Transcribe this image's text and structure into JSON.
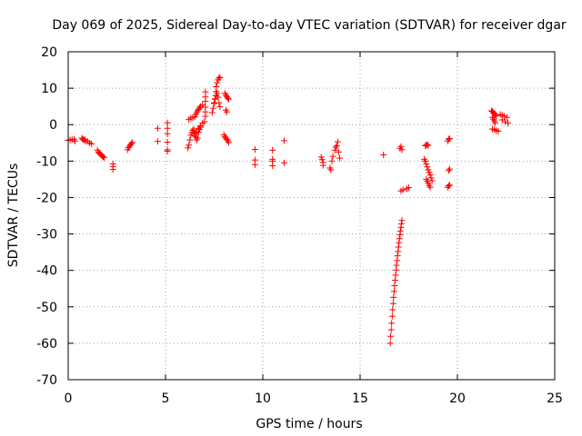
{
  "chart_data": {
    "type": "scatter",
    "title": "Day 069 of 2025, Sidereal Day-to-day VTEC variation (SDTVAR) for receiver dgar",
    "xlabel": "GPS time / hours",
    "ylabel": "SDTVAR / TECUs",
    "xlim": [
      0,
      25
    ],
    "ylim": [
      -70,
      20
    ],
    "xticks": [
      0,
      5,
      10,
      15,
      20,
      25
    ],
    "yticks": [
      -70,
      -60,
      -50,
      -40,
      -30,
      -20,
      -10,
      0,
      10,
      20
    ],
    "xtick_labels": [
      "0",
      "5",
      "10",
      "15",
      "20",
      "25"
    ],
    "ytick_labels": [
      "-70",
      "-60",
      "-50",
      "-40",
      "-30",
      "-20",
      "-10",
      "0",
      "10",
      "20"
    ],
    "grid": true,
    "marker": "plus",
    "color": "#ff0000",
    "segments": [
      [
        [
          0.0,
          -4.3
        ],
        [
          0.1,
          -4.2
        ],
        [
          0.2,
          -4.1
        ],
        [
          0.3,
          -4.0
        ],
        [
          0.35,
          -4.5
        ]
      ],
      [
        [
          0.7,
          -3.7
        ],
        [
          0.75,
          -4.0
        ],
        [
          0.8,
          -4.2
        ],
        [
          0.85,
          -4.1
        ],
        [
          0.9,
          -4.5
        ],
        [
          1.0,
          -4.6
        ],
        [
          1.1,
          -5.0
        ],
        [
          1.2,
          -5.3
        ]
      ],
      [
        [
          1.5,
          -7.0
        ],
        [
          1.55,
          -7.5
        ],
        [
          1.6,
          -7.8
        ],
        [
          1.65,
          -8.1
        ],
        [
          1.7,
          -8.4
        ],
        [
          1.75,
          -8.6
        ],
        [
          1.8,
          -8.9
        ],
        [
          1.85,
          -9.0
        ]
      ],
      [
        [
          2.3,
          -10.8
        ],
        [
          2.3,
          -11.5
        ],
        [
          2.3,
          -12.3
        ]
      ],
      [
        [
          3.05,
          -6.9
        ],
        [
          3.1,
          -6.3
        ],
        [
          3.15,
          -5.9
        ],
        [
          3.2,
          -5.5
        ],
        [
          3.25,
          -5.2
        ],
        [
          3.3,
          -4.9
        ]
      ],
      [
        [
          4.6,
          -1.0
        ],
        [
          4.6,
          -4.6
        ]
      ],
      [
        [
          5.1,
          0.5
        ],
        [
          5.1,
          -1.0
        ],
        [
          5.1,
          -2.5
        ],
        [
          5.1,
          -4.8
        ],
        [
          5.1,
          -6.9
        ],
        [
          5.1,
          -7.3
        ]
      ],
      [
        [
          6.15,
          -6.4
        ],
        [
          6.2,
          -5.6
        ],
        [
          6.25,
          -4.2
        ],
        [
          6.3,
          -2.9
        ],
        [
          6.35,
          -2.2
        ],
        [
          6.4,
          -1.6
        ],
        [
          6.45,
          -1.2
        ],
        [
          6.5,
          -2.3
        ],
        [
          6.55,
          -3.4
        ],
        [
          6.6,
          -4.2
        ],
        [
          6.65,
          -3.7
        ],
        [
          6.7,
          -2.1
        ],
        [
          6.75,
          -1.3
        ],
        [
          6.8,
          -0.7
        ]
      ],
      [
        [
          6.2,
          1.4
        ],
        [
          6.3,
          1.8
        ],
        [
          6.4,
          1.9
        ],
        [
          6.5,
          2.2
        ],
        [
          6.55,
          2.8
        ],
        [
          6.6,
          3.3
        ],
        [
          6.65,
          3.8
        ],
        [
          6.7,
          4.2
        ],
        [
          6.75,
          4.6
        ],
        [
          6.8,
          5.0
        ],
        [
          6.9,
          5.4
        ]
      ],
      [
        [
          6.5,
          -3.1
        ],
        [
          6.55,
          -2.6
        ],
        [
          6.6,
          -1.9
        ],
        [
          6.7,
          -1.0
        ],
        [
          6.8,
          -0.3
        ],
        [
          6.9,
          0.4
        ],
        [
          7.0,
          0.8
        ]
      ],
      [
        [
          7.05,
          9.0
        ],
        [
          7.05,
          7.6
        ],
        [
          7.05,
          6.4
        ],
        [
          7.05,
          4.8
        ],
        [
          7.05,
          3.5
        ],
        [
          7.05,
          2.3
        ]
      ],
      [
        [
          7.4,
          3.3
        ],
        [
          7.45,
          4.5
        ],
        [
          7.5,
          5.8
        ],
        [
          7.55,
          7.0
        ],
        [
          7.6,
          8.0
        ],
        [
          7.6,
          9.1
        ],
        [
          7.6,
          10.4
        ],
        [
          7.65,
          11.5
        ],
        [
          7.7,
          12.3
        ],
        [
          7.75,
          12.8
        ],
        [
          7.8,
          13.0
        ]
      ],
      [
        [
          7.5,
          6.0
        ],
        [
          7.55,
          7.1
        ],
        [
          7.6,
          7.9
        ],
        [
          7.65,
          8.6
        ],
        [
          7.7,
          7.5
        ],
        [
          7.75,
          6.0
        ],
        [
          7.8,
          4.9
        ]
      ],
      [
        [
          8.05,
          8.6
        ],
        [
          8.1,
          8.1
        ],
        [
          8.15,
          7.7
        ],
        [
          8.2,
          7.3
        ],
        [
          8.25,
          7.0
        ],
        [
          8.1,
          4.0
        ],
        [
          8.15,
          3.5
        ]
      ],
      [
        [
          8.0,
          -2.8
        ],
        [
          8.05,
          -3.3
        ],
        [
          8.1,
          -3.7
        ],
        [
          8.15,
          -4.0
        ],
        [
          8.2,
          -4.4
        ],
        [
          8.25,
          -4.9
        ]
      ],
      [
        [
          9.6,
          -6.8
        ],
        [
          9.6,
          -9.7
        ],
        [
          9.6,
          -11.0
        ]
      ],
      [
        [
          10.5,
          -7.0
        ],
        [
          10.5,
          -9.5
        ],
        [
          10.5,
          -10.0
        ],
        [
          10.5,
          -11.3
        ]
      ],
      [
        [
          11.1,
          -4.4
        ],
        [
          11.1,
          -10.5
        ]
      ],
      [
        [
          13.0,
          -8.9
        ],
        [
          13.05,
          -9.6
        ],
        [
          13.1,
          -10.4
        ],
        [
          13.1,
          -11.2
        ]
      ],
      [
        [
          13.45,
          -11.9
        ],
        [
          13.5,
          -12.4
        ],
        [
          13.55,
          -10.0
        ],
        [
          13.6,
          -8.7
        ],
        [
          13.7,
          -7.0
        ],
        [
          13.75,
          -6.2
        ],
        [
          13.8,
          -5.8
        ],
        [
          13.85,
          -4.7
        ],
        [
          13.9,
          -7.5
        ],
        [
          13.95,
          -9.2
        ]
      ],
      [
        [
          16.2,
          -8.3
        ]
      ],
      [
        [
          16.55,
          -60.0
        ],
        [
          16.57,
          -58.1
        ],
        [
          16.6,
          -56.3
        ],
        [
          16.62,
          -54.5
        ],
        [
          16.65,
          -52.6
        ],
        [
          16.67,
          -50.8
        ],
        [
          16.7,
          -49.1
        ],
        [
          16.72,
          -47.4
        ],
        [
          16.75,
          -45.8
        ],
        [
          16.77,
          -44.2
        ],
        [
          16.8,
          -42.7
        ],
        [
          16.82,
          -41.3
        ],
        [
          16.85,
          -39.9
        ],
        [
          16.87,
          -38.6
        ],
        [
          16.9,
          -37.3
        ],
        [
          16.92,
          -36.0
        ],
        [
          16.95,
          -34.8
        ],
        [
          16.97,
          -33.6
        ],
        [
          17.0,
          -32.4
        ],
        [
          17.02,
          -31.3
        ],
        [
          17.05,
          -30.2
        ],
        [
          17.07,
          -29.2
        ],
        [
          17.1,
          -28.2
        ],
        [
          17.12,
          -27.2
        ],
        [
          17.15,
          -26.3
        ]
      ],
      [
        [
          17.05,
          -6.5
        ],
        [
          17.1,
          -6.0
        ],
        [
          17.15,
          -6.9
        ]
      ],
      [
        [
          17.1,
          -18.2
        ],
        [
          17.2,
          -17.9
        ],
        [
          17.4,
          -17.6
        ],
        [
          17.5,
          -17.3
        ]
      ],
      [
        [
          18.3,
          -9.5
        ],
        [
          18.35,
          -10.0
        ],
        [
          18.4,
          -10.8
        ],
        [
          18.45,
          -11.6
        ],
        [
          18.5,
          -12.4
        ],
        [
          18.55,
          -13.1
        ],
        [
          18.6,
          -13.8
        ],
        [
          18.65,
          -14.6
        ],
        [
          18.7,
          -15.4
        ]
      ],
      [
        [
          18.35,
          -5.8
        ],
        [
          18.4,
          -5.6
        ],
        [
          18.45,
          -5.5
        ],
        [
          18.5,
          -5.7
        ]
      ],
      [
        [
          18.4,
          -15.0
        ],
        [
          18.45,
          -15.5
        ],
        [
          18.5,
          -16.1
        ],
        [
          18.55,
          -16.7
        ],
        [
          18.6,
          -17.2
        ]
      ],
      [
        [
          19.5,
          -4.5
        ],
        [
          19.55,
          -4.0
        ],
        [
          19.6,
          -3.8
        ]
      ],
      [
        [
          19.55,
          -12.6
        ],
        [
          19.6,
          -12.2
        ]
      ],
      [
        [
          19.5,
          -17.2
        ],
        [
          19.55,
          -16.8
        ],
        [
          19.6,
          -16.6
        ]
      ],
      [
        [
          21.75,
          3.8
        ],
        [
          21.8,
          3.6
        ],
        [
          21.85,
          3.3
        ],
        [
          21.9,
          3.0
        ],
        [
          21.95,
          2.7
        ],
        [
          22.0,
          2.4
        ],
        [
          21.8,
          2.0
        ],
        [
          21.85,
          1.5
        ],
        [
          21.9,
          1.0
        ],
        [
          21.95,
          0.5
        ]
      ],
      [
        [
          22.2,
          2.8
        ],
        [
          22.3,
          2.6
        ],
        [
          22.4,
          2.3
        ],
        [
          22.55,
          2.0
        ],
        [
          22.3,
          1.3
        ],
        [
          22.45,
          0.8
        ],
        [
          22.6,
          0.4
        ]
      ],
      [
        [
          21.8,
          -1.2
        ],
        [
          21.9,
          -1.4
        ],
        [
          22.0,
          -1.6
        ],
        [
          22.1,
          -1.8
        ]
      ]
    ]
  }
}
